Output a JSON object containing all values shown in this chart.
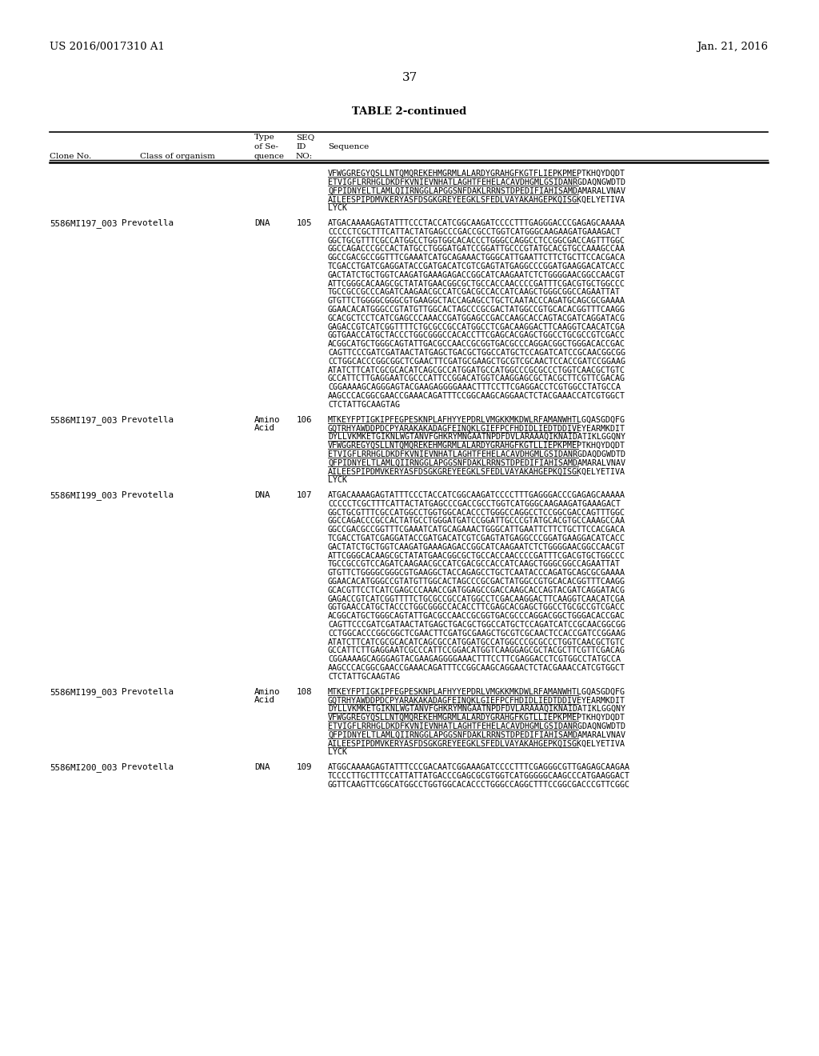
{
  "background_color": "#ffffff",
  "header_left": "US 2016/0017310 A1",
  "header_right": "Jan. 21, 2016",
  "page_number": "37",
  "table_title": "TABLE 2-continued",
  "sections": [
    {
      "clone": "",
      "type": "",
      "seq_id": "",
      "sequence_lines": [
        "VFWGGREGYQSLLNTQMQREKEHMGRMLALARDYGRAHGFKGTFLIEPKPMEPTKHQYDQDT",
        "ETVIGFLRRHGLDKDFKVNIEVNHATLAGHTFEHELACAVDHGMLGSIDANRGDAQNGWDTD",
        "QFPIDNYELTLAMLQIIRNGGLAPGGSNFDAKLRRNSTDPEDIFIAHISAMDAMARALVNAV",
        "AILEESPIPDMVKERYASFDSGKGREYEEGKLSFEDLVAYAKAHGEPKQISGKQELYETIVA",
        "LYCK"
      ],
      "underline_lines": [
        0,
        1,
        2,
        3
      ]
    },
    {
      "clone": "5586MI197_003 Prevotella",
      "type": "DNA",
      "seq_id": "105",
      "sequence_lines": [
        "ATGACAAAAGAGTATTTCCCTACCATCGGCAAGATCCCCTTTGAGGGACCCGAGAGCAAAAA",
        "CCCCCTCGCTTTCATTACTATGAGCCCGACCGCCTGGTCATGGGCAAGAAGATGAAAGACT",
        "GGCTGCGTTTCGCCATGGCCTGGTGGCACACCCTGGGCCAGGCCTCCGGCGACCAGTTTGGC",
        "GGCCAGACCCGCCACTATGCCTGGGATGATCCGGATTGCCCGTATGCACGTGCCAAAGCCAA",
        "GGCCGACGCCGGTTTCGAAATCATGCAGAAACTGGGCATTGAATTCTTCTGCTTCCACGACA",
        "TCGACCTGATCGAGGATACCGATGACATCGTCGAGTATGAGGCCCGGATGAAGGACATCACC",
        "GACTATCTGCTGGTCAAGATGAAAGAGACCGGCATCAAGAATCTCTGGGGAACGGCCAACGT",
        "ATTCGGGCACAAGCGCTATATGAACGGCGCTGCCACCAACCCCGATTTCGACGTGCTGGCCC",
        "TGCCGCCGCCCAGATCAAGAACGCCATCGACGCCACCATCAAGCTGGGCGGCCAGAATTAT",
        "GTGTTCTGGGGCGGGCGTGAAGGCTACCAGAGCCTGCTCAATACCCAGATGCAGCGCGAAAA",
        "GGAACACATGGGCCGTATGTTGGCACTAGCCCGCGACTATGGCCGTGCACACGGTTTCAAGG",
        "GCACGCTCCTCATCGAGCCCAAACCGATGGAGCCGACCAAGCACCAGTACGATCAGGATACG",
        "GAGACCGTCATCGGTTTTCTGCGCCGCCATGGCCTCGACAAGGACTTCAAGGTCAACATCGA",
        "GGTGAACCATGCTACCCTGGCGGGCCACACCTTCGAGCACGAGCTGGCCTGCGCCGTCGACC",
        "ACGGCATGCTGGGCAGTATTGACGCCAACCGCGGTGACGCCCAGGACGGCTGGGACACCGAC",
        "CAGTTCCCGATCGATAACTATGAGCTGACGCTGGCCATGCTCCAGATCATCCGCAACGGCGG",
        "CCTGGCACCCGGCGGCTCGAACTTCGATGCGAAGCTGCGTCGCAACTCCACCGATCCGGAAG",
        "ATATCTTCATCGCGCACATCAGCGCCATGGATGCCATGGCCCGCGCCCTGGTCAACGCTGTC",
        "GCCATTCTTGAGGAATCGCCCATTCCGGACATGGTCAAGGAGCGCTACGCTTCGTTCGACAG",
        "CGGAAAAGCAGGGAGTACGAAGAGGGGAAACTTTCCTTCGAGGACCTCGTGGCCTATGCCA",
        "AAGCCCACGGCGAACCGAAACAGATTTCCGGCAAGCAGGAACTCTACGAAACCATCGTGGCT",
        "CTCTATTGCAAGTAG"
      ],
      "underline_lines": []
    },
    {
      "clone": "5586MI197_003 Prevotella",
      "type": "Amino\nAcid",
      "seq_id": "106",
      "sequence_lines": [
        "MTKEYFPTIGKIPFEGPESKNPLAFHYYEPDRLVMGKKMKDWLRFAMANWHTLGQASGDQFG",
        "GQTRHYAWDDPDCPYARAKAKADAGFEINQKLGIEFPCFHDIDLIEDTDDIVEYEARMKDIT",
        "DYLLVKMKETGIKNLWGTANVFGHKRYMNGAATNPDFDVLARAAAQIKNAIDATIKLGGQNY",
        "VFWGGREGYQSLLNTQMQREKEHMGRMLALARDYGRAHGFKGTLLIEPKPMEPTKHQYDQDT",
        "ETVIGFLRRHGLDKDFKVNIEVNHATLAGHTFEHELACAVDHGMLGSIDANRGDAQDGWDTD",
        "QFPIDNYELTLAMLQIIRNGGLAPGGSNFDAKLRRNSTDPEDIFIAHISAMDAMARALVNAV",
        "AILEESPIPDMVKERYASFDSGKGREYEEGKLSFEDLVAYAKAHGEPKQISGKQELYETIVA",
        "LYCK"
      ],
      "underline_lines": [
        0,
        1,
        2,
        3,
        4,
        5,
        6
      ]
    },
    {
      "clone": "5586MI199_003 Prevotella",
      "type": "DNA",
      "seq_id": "107",
      "sequence_lines": [
        "ATGACAAAAGAGTATTTCCCTACCATCGGCAAGATCCCCTTTGAGGGACCCGAGAGCAAAAA",
        "CCCCCTCGCTTTCATTACTATGAGCCCGACCGCCTGGTCATGGGCAAGAAGATGAAAGACT",
        "GGCTGCGTTTCGCCATGGCCTGGTGGCACACCCTGGGCCAGGCCTCCGGCGACCAGTTTGGC",
        "GGCCAGACCCGCCACTATGCCTGGGATGATCCGGATTGCCCGTATGCACGTGCCAAAGCCAA",
        "GGCCGACGCCGGTTTCGAAATCATGCAGAAACTGGGCATTGAATTCTTCTGCTTCCACGACA",
        "TCGACCTGATCGAGGATACCGATGACATCGTCGAGTATGAGGCCCGGATGAAGGACATCACC",
        "GACTATCTGCTGGTCAAGATGAAAGAGACCGGCATCAAGAATCTCTGGGGAACGGCCAACGT",
        "ATTCGGGCACAAGCGCTATATGAACGGCGCTGCCACCAACCCCGATTTCGACGTGCTGGCCC",
        "TGCCGCCGTCCAGATCAAGAACGCCATCGACGCCACCATCAAGCTGGGCGGCCAGAATTAT",
        "GTGTTCTGGGGCGGGCGTGAAGGCTACCAGAGCCTGCTCAATACCCAGATGCAGCGCGAAAA",
        "GGAACACATGGGCCGTATGTTGGCACTAGCCCGCGACTATGGCCGTGCACACGGTTTCAAGG",
        "GCACGTTCCTCATCGAGCCCAAACCGATGGAGCCGACCAAGCACCAGTACGATCAGGATACG",
        "GAGACCGTCATCGGTTTTCTGCGCCGCCATGGCCTCGACAAGGACTTCAAGGTCAACATCGA",
        "GGTGAACCATGCTACCCTGGCGGGCCACACCTTCGAGCACGAGCTGGCCTGCGCCGTCGACC",
        "ACGGCATGCTGGGCAGTATTGACGCCAACCGCGGTGACGCCCAGGACGGCTGGGACACCGAC",
        "CAGTTCCCGATCGATAACTATGAGCTGACGCTGGCCATGCTCCAGATCATCCGCAACGGCGG",
        "CCTGGCACCCGGCGGCTCGAACTTCGATGCGAAGCTGCGTCGCAACTCCACCGATCCGGAAG",
        "ATATCTTCATCGCGCACATCAGCGCCATGGATGCCATGGCCCGCGCCCTGGTCAACGCTGTC",
        "GCCATTCTTGAGGAATCGCCCATTCCGGACATGGTCAAGGAGCGCTACGCTTCGTTCGACAG",
        "CGGAAAAGCAGGGAGTACGAAGAGGGGAAACTTTCCTTCGAGGACCTCGTGGCCTATGCCA",
        "AAGCCCACGGCGAACCGAAACAGATTTCCGGCAAGCAGGAACTCTACGAAACCATCGTGGCT",
        "CTCTATTGCAAGTAG"
      ],
      "underline_lines": []
    },
    {
      "clone": "5586MI199_003 Prevotella",
      "type": "Amino\nAcid",
      "seq_id": "108",
      "sequence_lines": [
        "MTKEYFPTIGKIPFEGPESKNPLAFHYYEPDRLVMGKKMKDWLRFAMANWHTLGQASGDQFG",
        "GQTRHYAWDDPDCPYARAKAKADAGFEINQKLGIEFPCFHDIDLIEDTDDIVEYEARMKDIT",
        "DYLLVKMKETGIKNLWGTANVFGHKRYMNGAATNPDFDVLARAAAQIKNAIDATIKLGGQNY",
        "VFWGGREGYQSLLNTQMQREKEHMGRMLALARDYGRAHGFKGTLLIEPKPMEPTKHQYDQDT",
        "ETVIGFLRRHGLDKDFKVNIEVNHATLAGHTFEHELACAVDHGMLGSIDANRGDAQNGWDTD",
        "QFPIDNYELTLAMLQIIRNGGLAPGGSNFDAKLRRNSTDPEDIFIAHISAMDAMARALVNAV",
        "AILEESPIPDMVKERYASFDSGKGREYEEGKLSFEDLVAYAKAHGEPKQISGKQELYETIVA",
        "LYCK"
      ],
      "underline_lines": [
        0,
        1,
        2,
        3,
        4,
        5,
        6
      ]
    },
    {
      "clone": "5586MI200_003 Prevotella",
      "type": "DNA",
      "seq_id": "109",
      "sequence_lines": [
        "ATGGCAAAAGAGTATTTCCCGACAATCGGAAAGATCCCCTTTCGAGGGCGTTGAGAGCAAGAA",
        "TCCCCTTGCTTTCCATTATTATGACCCGAGCGCGTGGTCATGGGGGCAAGCCCATGAAGGACT",
        "GGTTCAAGTTCGGCATGGCCTGGTGGCACACCCTGGGCCAGGCTTTCCGGCGACCCGTTCGGC"
      ],
      "underline_lines": []
    }
  ]
}
